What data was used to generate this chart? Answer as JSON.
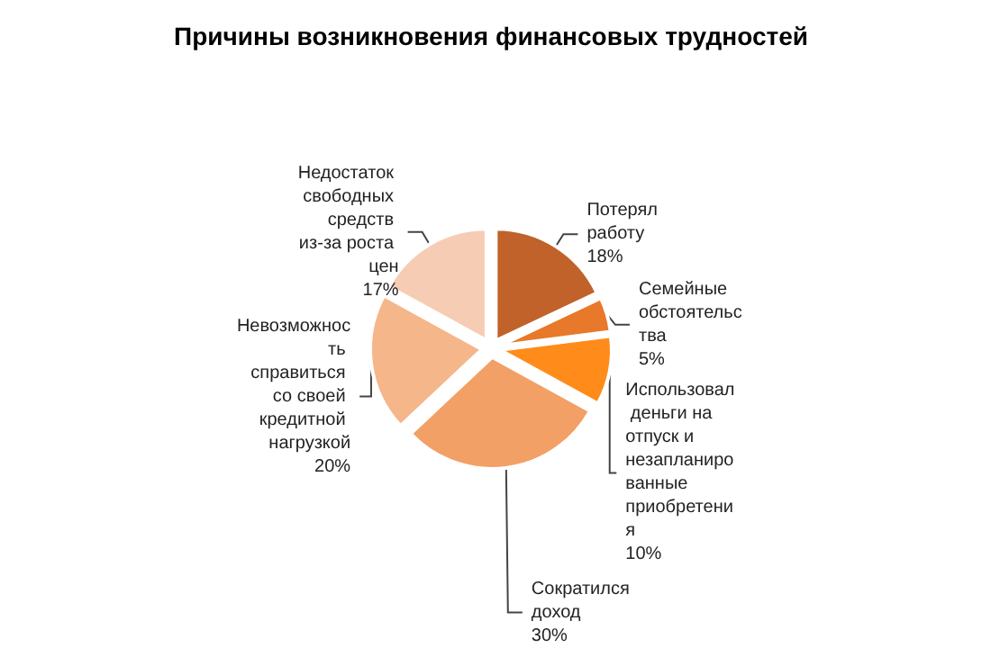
{
  "chart_data": {
    "type": "pie",
    "title": "Причины возникновения финансовых трудностей",
    "categories": [
      "Потерял работу",
      "Семейные обстоятельства",
      "Использовал деньги на отпуск и незапланированные приобретения",
      "Сократился доход",
      "Невозможность справиться со своей кредитной нагрузкой",
      "Недостаток свободных средств из-за роста цен"
    ],
    "values": [
      18,
      5,
      10,
      30,
      20,
      17
    ],
    "value_labels": [
      "18%",
      "5%",
      "10%",
      "30%",
      "20%",
      "17%"
    ],
    "colors": [
      "#c0622a",
      "#e8782a",
      "#ff8c1a",
      "#f2a066",
      "#f5b68a",
      "#f6cdb4"
    ],
    "legend": false
  }
}
